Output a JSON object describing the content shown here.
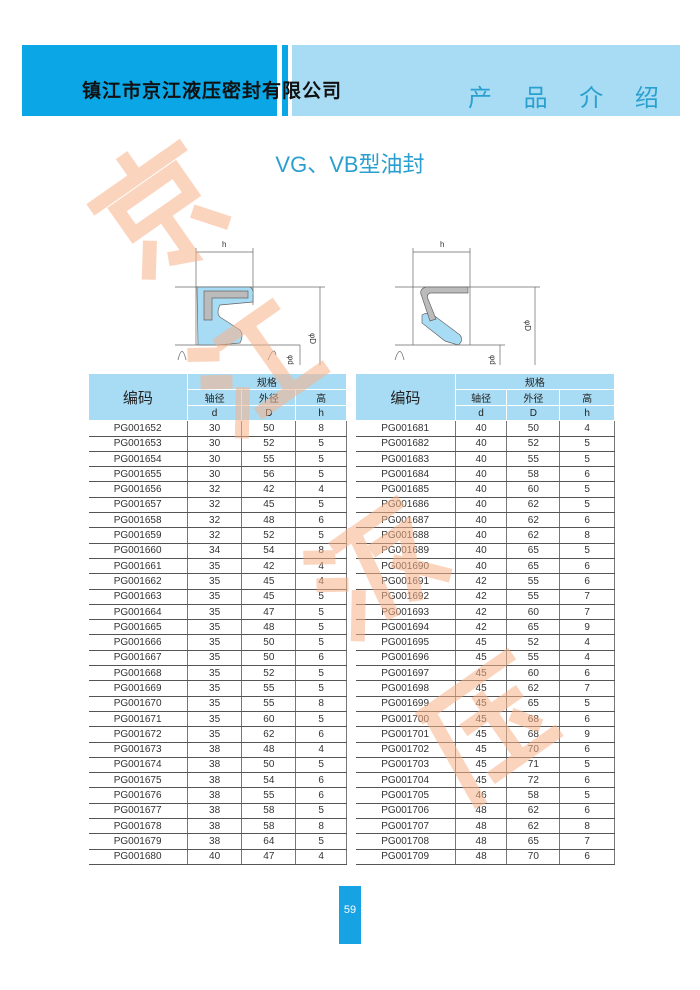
{
  "header": {
    "company": "镇江市京江液压密封有限公司",
    "section": "产 品 介 绍"
  },
  "title": "VG、VB型油封",
  "diagram": {
    "h_label": "h",
    "D_label": "φD",
    "d_label": "φd"
  },
  "watermark": "京江液压",
  "table_headers": {
    "code": "编码",
    "spec": "规格",
    "shaft": "轴径",
    "outer": "外径",
    "height": "高",
    "d": "d",
    "D": "D",
    "h": "h"
  },
  "tables": [
    {
      "rows": [
        [
          "PG001652",
          "30",
          "50",
          "8"
        ],
        [
          "PG001653",
          "30",
          "52",
          "5"
        ],
        [
          "PG001654",
          "30",
          "55",
          "5"
        ],
        [
          "PG001655",
          "30",
          "56",
          "5"
        ],
        [
          "PG001656",
          "32",
          "42",
          "4"
        ],
        [
          "PG001657",
          "32",
          "45",
          "5"
        ],
        [
          "PG001658",
          "32",
          "48",
          "6"
        ],
        [
          "PG001659",
          "32",
          "52",
          "5"
        ],
        [
          "PG001660",
          "34",
          "54",
          "8"
        ],
        [
          "PG001661",
          "35",
          "42",
          "4"
        ],
        [
          "PG001662",
          "35",
          "45",
          "4"
        ],
        [
          "PG001663",
          "35",
          "45",
          "5"
        ],
        [
          "PG001664",
          "35",
          "47",
          "5"
        ],
        [
          "PG001665",
          "35",
          "48",
          "5"
        ],
        [
          "PG001666",
          "35",
          "50",
          "5"
        ],
        [
          "PG001667",
          "35",
          "50",
          "6"
        ],
        [
          "PG001668",
          "35",
          "52",
          "5"
        ],
        [
          "PG001669",
          "35",
          "55",
          "5"
        ],
        [
          "PG001670",
          "35",
          "55",
          "8"
        ],
        [
          "PG001671",
          "35",
          "60",
          "5"
        ],
        [
          "PG001672",
          "35",
          "62",
          "6"
        ],
        [
          "PG001673",
          "38",
          "48",
          "4"
        ],
        [
          "PG001674",
          "38",
          "50",
          "5"
        ],
        [
          "PG001675",
          "38",
          "54",
          "6"
        ],
        [
          "PG001676",
          "38",
          "55",
          "6"
        ],
        [
          "PG001677",
          "38",
          "58",
          "5"
        ],
        [
          "PG001678",
          "38",
          "58",
          "8"
        ],
        [
          "PG001679",
          "38",
          "64",
          "5"
        ],
        [
          "PG001680",
          "40",
          "47",
          "4"
        ]
      ]
    },
    {
      "rows": [
        [
          "PG001681",
          "40",
          "50",
          "4"
        ],
        [
          "PG001682",
          "40",
          "52",
          "5"
        ],
        [
          "PG001683",
          "40",
          "55",
          "5"
        ],
        [
          "PG001684",
          "40",
          "58",
          "6"
        ],
        [
          "PG001685",
          "40",
          "60",
          "5"
        ],
        [
          "PG001686",
          "40",
          "62",
          "5"
        ],
        [
          "PG001687",
          "40",
          "62",
          "6"
        ],
        [
          "PG001688",
          "40",
          "62",
          "8"
        ],
        [
          "PG001689",
          "40",
          "65",
          "5"
        ],
        [
          "PG001690",
          "40",
          "65",
          "6"
        ],
        [
          "PG001691",
          "42",
          "55",
          "6"
        ],
        [
          "PG001692",
          "42",
          "55",
          "7"
        ],
        [
          "PG001693",
          "42",
          "60",
          "7"
        ],
        [
          "PG001694",
          "42",
          "65",
          "9"
        ],
        [
          "PG001695",
          "45",
          "52",
          "4"
        ],
        [
          "PG001696",
          "45",
          "55",
          "4"
        ],
        [
          "PG001697",
          "45",
          "60",
          "6"
        ],
        [
          "PG001698",
          "45",
          "62",
          "7"
        ],
        [
          "PG001699",
          "45",
          "65",
          "5"
        ],
        [
          "PG001700",
          "45",
          "68",
          "6"
        ],
        [
          "PG001701",
          "45",
          "68",
          "9"
        ],
        [
          "PG001702",
          "45",
          "70",
          "6"
        ],
        [
          "PG001703",
          "45",
          "71",
          "5"
        ],
        [
          "PG001704",
          "45",
          "72",
          "6"
        ],
        [
          "PG001705",
          "46",
          "58",
          "5"
        ],
        [
          "PG001706",
          "48",
          "62",
          "6"
        ],
        [
          "PG001707",
          "48",
          "62",
          "8"
        ],
        [
          "PG001708",
          "48",
          "65",
          "7"
        ],
        [
          "PG001709",
          "48",
          "70",
          "6"
        ]
      ]
    }
  ],
  "page_number": "59",
  "colors": {
    "accent": "#0aa6e6",
    "light": "#a8dcf4",
    "watermark": "#f7b188"
  }
}
